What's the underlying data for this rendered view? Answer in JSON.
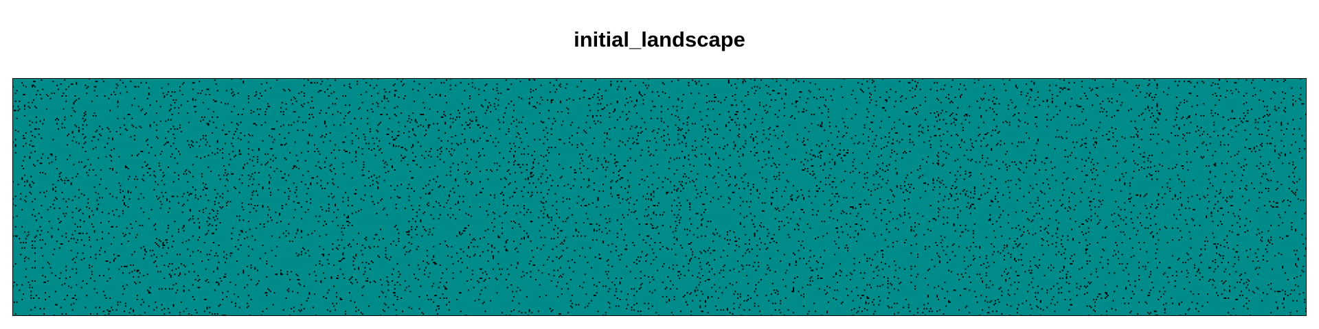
{
  "chart_data": {
    "type": "heatmap",
    "title": "initial_landscape",
    "xlabel": "",
    "ylabel": "",
    "grid": false,
    "legend": "none",
    "colors": {
      "background": "#008b8b",
      "cells": "#000000",
      "frame": "#000000"
    },
    "grid_size": {
      "cols": 1000,
      "rows": 180
    },
    "cell_fraction": 0.04,
    "description_of_values": "binary landscape: teal = empty habitat, black = occupied cells, randomly scattered"
  }
}
